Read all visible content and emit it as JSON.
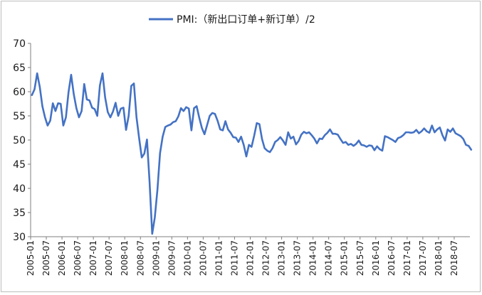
{
  "chart_data": {
    "type": "line",
    "legend": {
      "label": "PMI:（新出口订单+新订单）/2",
      "placement": "top-center",
      "color": "#4472C4"
    },
    "ylim": [
      30,
      70
    ],
    "y_ticks": [
      30,
      35,
      40,
      45,
      50,
      55,
      60,
      65,
      70
    ],
    "x_range": [
      "2005-01",
      "2018-12"
    ],
    "x_ticks": [
      "2005-01",
      "2005-07",
      "2006-01",
      "2006-07",
      "2007-01",
      "2007-07",
      "2008-01",
      "2008-07",
      "2009-01",
      "2009-07",
      "2010-01",
      "2010-07",
      "2011-01",
      "2011-07",
      "2012-01",
      "2012-07",
      "2013-01",
      "2013-07",
      "2014-01",
      "2014-07",
      "2015-01",
      "2015-07",
      "2016-01",
      "2016-07",
      "2017-01",
      "2017-07",
      "2018-01",
      "2018-07"
    ],
    "grid": false,
    "series": [
      {
        "name": "PMI:（新出口订单+新订单）/2",
        "color": "#4472C4",
        "start": "2005-01",
        "values": [
          59.3,
          60.5,
          63.8,
          61.0,
          57.0,
          54.7,
          53.0,
          54.0,
          57.6,
          56.0,
          57.6,
          57.5,
          53.0,
          54.7,
          59.9,
          63.5,
          59.5,
          56.6,
          54.7,
          56.0,
          61.6,
          58.4,
          58.2,
          56.7,
          56.4,
          55.0,
          61.3,
          63.8,
          58.8,
          55.8,
          54.7,
          55.9,
          57.7,
          55.0,
          56.5,
          56.7,
          52.1,
          55.0,
          61.2,
          61.7,
          54.7,
          50.4,
          46.4,
          47.2,
          50.1,
          41.3,
          30.6,
          34.0,
          39.7,
          47.3,
          50.7,
          52.7,
          53.0,
          53.2,
          53.7,
          53.9,
          54.9,
          56.6,
          56.0,
          56.8,
          56.5,
          52.0,
          56.6,
          57.0,
          54.6,
          52.5,
          51.2,
          53.1,
          55.0,
          55.6,
          55.4,
          54.0,
          52.2,
          52.0,
          53.9,
          52.2,
          51.5,
          50.6,
          50.5,
          49.6,
          50.7,
          49.0,
          46.6,
          49.0,
          48.6,
          50.9,
          53.5,
          53.3,
          50.2,
          48.3,
          47.8,
          47.5,
          48.3,
          49.6,
          50.0,
          50.6,
          49.9,
          49.0,
          51.6,
          50.3,
          50.7,
          49.1,
          49.8,
          51.1,
          51.7,
          51.4,
          51.6,
          51.0,
          50.3,
          49.3,
          50.3,
          50.2,
          51.0,
          51.5,
          52.2,
          51.3,
          51.3,
          51.1,
          50.2,
          49.4,
          49.6,
          49.0,
          49.2,
          48.8,
          49.2,
          49.9,
          49.0,
          48.9,
          48.6,
          48.9,
          48.8,
          47.9,
          48.7,
          48.1,
          47.8,
          50.8,
          50.6,
          50.3,
          50.0,
          49.6,
          50.4,
          50.6,
          51.0,
          51.6,
          51.6,
          51.5,
          51.6,
          52.1,
          51.4,
          51.8,
          52.4,
          51.8,
          51.5,
          53.0,
          51.6,
          52.2,
          52.6,
          51.0,
          49.9,
          52.2,
          51.7,
          52.4,
          51.4,
          51.1,
          50.8,
          50.2,
          49.0,
          48.8,
          48.0
        ]
      }
    ]
  }
}
